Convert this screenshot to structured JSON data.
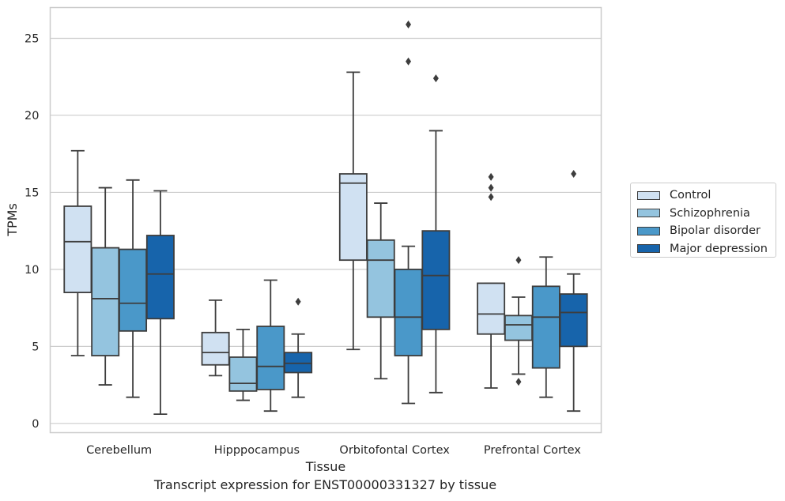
{
  "chart_data": {
    "type": "box",
    "title": "Transcript expression for ENST00000331327 by tissue",
    "xlabel": "Tissue",
    "ylabel": "TPMs",
    "ylim": [
      -0.6,
      27.0
    ],
    "yticks": [
      0,
      5,
      10,
      15,
      20,
      25
    ],
    "grid": true,
    "legend_position": "right",
    "categories": [
      "Cerebellum",
      "Hipppocampus",
      "Orbitofontal Cortex",
      "Prefrontal Cortex"
    ],
    "series": [
      {
        "name": "Control",
        "color": "#d0e1f2",
        "boxes": [
          {
            "whisker_low": 4.4,
            "q1": 8.5,
            "median": 11.8,
            "q3": 14.1,
            "whisker_high": 17.7,
            "outliers": []
          },
          {
            "whisker_low": 3.1,
            "q1": 3.8,
            "median": 4.6,
            "q3": 5.9,
            "whisker_high": 8.0,
            "outliers": []
          },
          {
            "whisker_low": 4.8,
            "q1": 10.6,
            "median": 15.6,
            "q3": 16.2,
            "whisker_high": 22.8,
            "outliers": []
          },
          {
            "whisker_low": 2.3,
            "q1": 5.8,
            "median": 7.1,
            "q3": 9.1,
            "whisker_high": 9.1,
            "outliers": [
              14.7,
              15.3,
              16.0
            ]
          }
        ]
      },
      {
        "name": "Schizophrenia",
        "color": "#94c4df",
        "boxes": [
          {
            "whisker_low": 2.5,
            "q1": 4.4,
            "median": 8.1,
            "q3": 11.4,
            "whisker_high": 15.3,
            "outliers": []
          },
          {
            "whisker_low": 1.5,
            "q1": 2.1,
            "median": 2.6,
            "q3": 4.3,
            "whisker_high": 6.1,
            "outliers": []
          },
          {
            "whisker_low": 2.9,
            "q1": 6.9,
            "median": 10.6,
            "q3": 11.9,
            "whisker_high": 14.3,
            "outliers": []
          },
          {
            "whisker_low": 3.2,
            "q1": 5.4,
            "median": 6.4,
            "q3": 7.0,
            "whisker_high": 8.2,
            "outliers": [
              2.7,
              10.6
            ]
          }
        ]
      },
      {
        "name": "Bipolar disorder",
        "color": "#4a98c9",
        "boxes": [
          {
            "whisker_low": 1.7,
            "q1": 6.0,
            "median": 7.8,
            "q3": 11.3,
            "whisker_high": 15.8,
            "outliers": []
          },
          {
            "whisker_low": 0.8,
            "q1": 2.2,
            "median": 3.7,
            "q3": 6.3,
            "whisker_high": 9.3,
            "outliers": []
          },
          {
            "whisker_low": 1.3,
            "q1": 4.4,
            "median": 6.9,
            "q3": 10.0,
            "whisker_high": 11.5,
            "outliers": [
              23.5,
              25.9
            ]
          },
          {
            "whisker_low": 1.7,
            "q1": 3.6,
            "median": 6.9,
            "q3": 8.9,
            "whisker_high": 10.8,
            "outliers": []
          }
        ]
      },
      {
        "name": "Major depression",
        "color": "#1764ab",
        "boxes": [
          {
            "whisker_low": 0.6,
            "q1": 6.8,
            "median": 9.7,
            "q3": 12.2,
            "whisker_high": 15.1,
            "outliers": []
          },
          {
            "whisker_low": 1.7,
            "q1": 3.3,
            "median": 3.9,
            "q3": 4.6,
            "whisker_high": 5.8,
            "outliers": [
              7.9
            ]
          },
          {
            "whisker_low": 2.0,
            "q1": 6.1,
            "median": 9.6,
            "q3": 12.5,
            "whisker_high": 19.0,
            "outliers": [
              22.4
            ]
          },
          {
            "whisker_low": 0.8,
            "q1": 5.0,
            "median": 7.2,
            "q3": 8.4,
            "whisker_high": 9.7,
            "outliers": [
              16.2
            ]
          }
        ]
      }
    ]
  }
}
